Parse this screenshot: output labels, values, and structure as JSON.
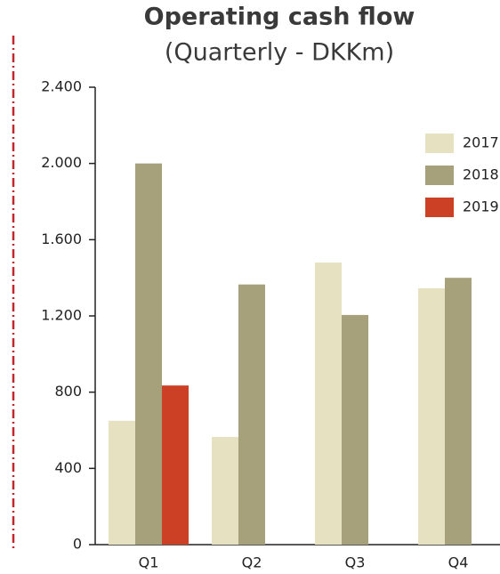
{
  "chart_data": {
    "type": "bar",
    "title": "Operating cash flow",
    "subtitle": "(Quarterly - DKKm)",
    "categories": [
      "Q1",
      "Q2",
      "Q3",
      "Q4"
    ],
    "series": [
      {
        "name": "2017",
        "color": "#e6e1c0",
        "values": [
          650,
          565,
          1480,
          1345
        ]
      },
      {
        "name": "2018",
        "color": "#a6a07b",
        "values": [
          2000,
          1365,
          1205,
          1400
        ]
      },
      {
        "name": "2019",
        "color": "#cc4125",
        "values": [
          835,
          null,
          null,
          null
        ]
      }
    ],
    "ylim": [
      0,
      2400
    ],
    "yticks": [
      0,
      400,
      800,
      {
        "value": 1200,
        "label": "1.200"
      },
      {
        "value": 1600,
        "label": "1.600"
      },
      {
        "value": 2000,
        "label": "2.000"
      },
      {
        "value": 2400,
        "label": "2.400"
      }
    ],
    "legend": "right"
  }
}
